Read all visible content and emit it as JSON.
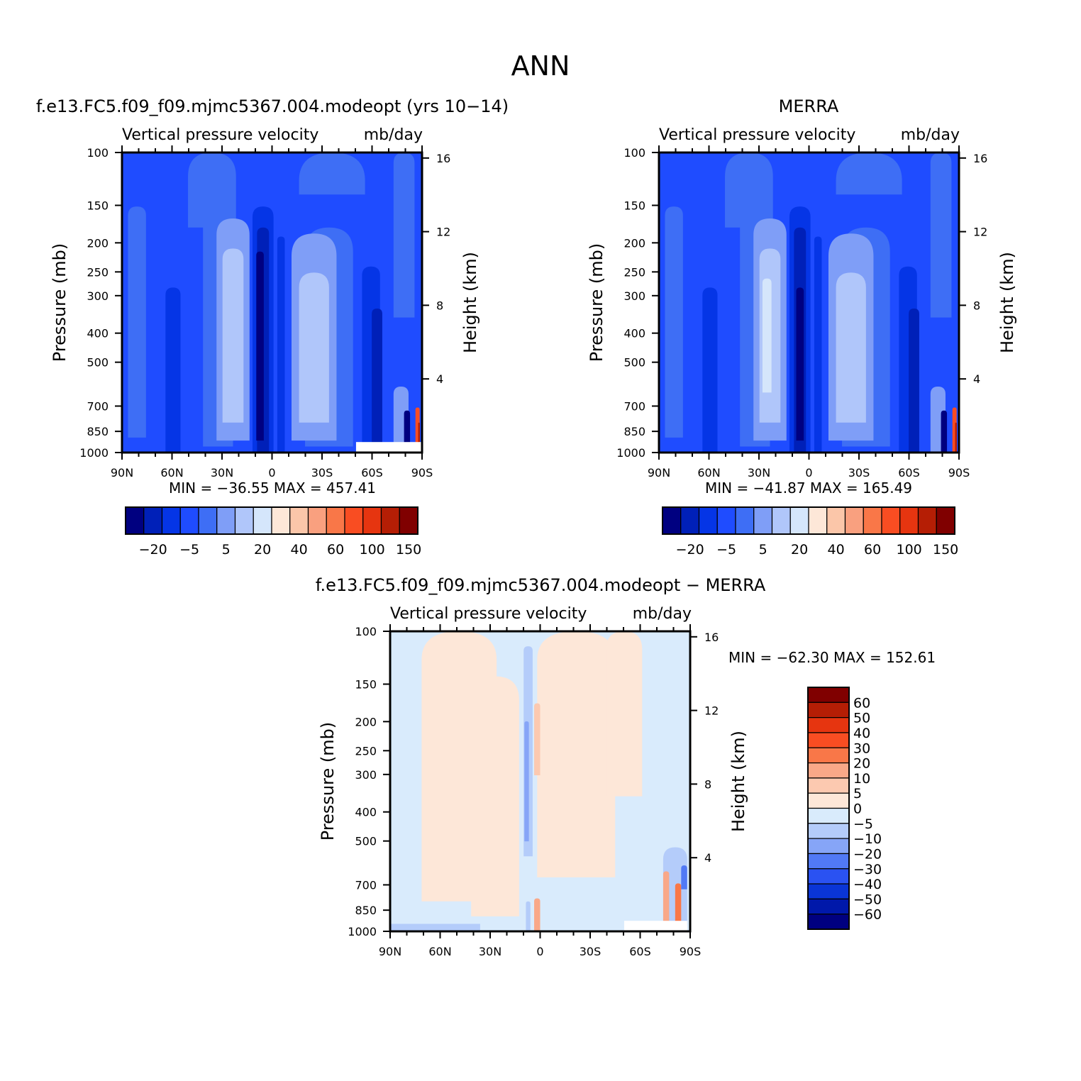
{
  "page_title": "ANN",
  "colors": {
    "blue_palette": [
      "#000080",
      "#0020b8",
      "#0535e6",
      "#1f4cff",
      "#3e6ef5",
      "#7f9ef7",
      "#b0c6fa",
      "#d5e6fb"
    ],
    "red_palette": [
      "#fde7d8",
      "#fbc6a9",
      "#f9a07f",
      "#f97748",
      "#f94d22",
      "#e63510",
      "#b51e05",
      "#800000"
    ],
    "diff_palette": [
      "#000080",
      "#0018aa",
      "#0a35d6",
      "#2a52f2",
      "#5179f5",
      "#86a5f7",
      "#b4ccfa",
      "#d9ebfc",
      "#fde7d8",
      "#fcc9b0",
      "#f9a888",
      "#f97748",
      "#f94d22",
      "#e63510",
      "#b51e05",
      "#800000"
    ]
  },
  "panels": [
    {
      "id": "model",
      "title": "f.e13.FC5.f09_f09.mjmc5367.004.modeopt (yrs 10−14)",
      "var_label": "Vertical pressure velocity",
      "units_label": "mb/day",
      "stats": "MIN = −36.55   MAX = 457.41"
    },
    {
      "id": "obs",
      "title": "MERRA",
      "var_label": "Vertical pressure velocity",
      "units_label": "mb/day",
      "stats": "MIN = −41.87   MAX = 165.49"
    },
    {
      "id": "diff",
      "title": "f.e13.FC5.f09_f09.mjmc5367.004.modeopt − MERRA",
      "var_label": "Vertical pressure velocity",
      "units_label": "mb/day",
      "stats": "MIN = −62.30   MAX = 152.61"
    }
  ],
  "axes": {
    "ylabel": "Pressure (mb)",
    "y2label": "Height (km)",
    "x_ticks": [
      "90N",
      "60N",
      "30N",
      "0",
      "30S",
      "60S",
      "90S"
    ],
    "y_ticks": [
      "100",
      "150",
      "200",
      "250",
      "300",
      "400",
      "500",
      "700",
      "850",
      "1000"
    ],
    "y2_ticks": [
      "16",
      "12",
      "8",
      "4"
    ]
  },
  "colorbars": {
    "main_labels": [
      "−20",
      "−5",
      "5",
      "20",
      "40",
      "60",
      "100",
      "150"
    ],
    "diff_labels": [
      "60",
      "50",
      "40",
      "30",
      "20",
      "10",
      "5",
      "0",
      "−5",
      "−10",
      "−20",
      "−30",
      "−40",
      "−50",
      "−60"
    ]
  },
  "chart_data": [
    {
      "type": "heatmap",
      "title": "f.e13.FC5.f09_f09.mjmc5367.004.modeopt (yrs 10−14)",
      "subtitle": "Vertical pressure velocity   mb/day",
      "xlabel": "",
      "ylabel": "Pressure (mb)",
      "y2label": "Height (km)",
      "x_range": [
        "90N",
        "90S"
      ],
      "y_range": [
        100,
        1000
      ],
      "y_scale": "log",
      "min": -36.55,
      "max": 457.41,
      "legend": "colorbar-bottom",
      "levels": [
        -20,
        -5,
        5,
        20,
        40,
        60,
        100,
        150
      ]
    },
    {
      "type": "heatmap",
      "title": "MERRA",
      "subtitle": "Vertical pressure velocity   mb/day",
      "xlabel": "",
      "ylabel": "Pressure (mb)",
      "y2label": "Height (km)",
      "x_range": [
        "90N",
        "90S"
      ],
      "y_range": [
        100,
        1000
      ],
      "y_scale": "log",
      "min": -41.87,
      "max": 165.49,
      "legend": "colorbar-bottom",
      "levels": [
        -20,
        -5,
        5,
        20,
        40,
        60,
        100,
        150
      ]
    },
    {
      "type": "heatmap",
      "title": "f.e13.FC5.f09_f09.mjmc5367.004.modeopt − MERRA",
      "subtitle": "Vertical pressure velocity   mb/day",
      "xlabel": "",
      "ylabel": "Pressure (mb)",
      "y2label": "Height (km)",
      "x_range": [
        "90N",
        "90S"
      ],
      "y_range": [
        100,
        1000
      ],
      "y_scale": "log",
      "min": -62.3,
      "max": 152.61,
      "legend": "colorbar-right",
      "levels": [
        -60,
        -50,
        -40,
        -30,
        -20,
        -10,
        -5,
        0,
        5,
        10,
        20,
        30,
        40,
        50,
        60
      ]
    }
  ]
}
